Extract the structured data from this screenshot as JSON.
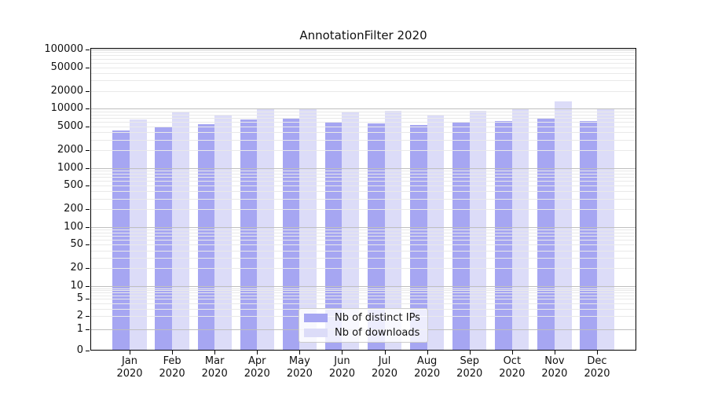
{
  "title": "AnnotationFilter 2020",
  "chart_data": {
    "type": "bar",
    "title": "AnnotationFilter 2020",
    "categories": [
      "Jan 2020",
      "Feb 2020",
      "Mar 2020",
      "Apr 2020",
      "May 2020",
      "Jun 2020",
      "Jul 2020",
      "Aug 2020",
      "Sep 2020",
      "Oct 2020",
      "Nov 2020",
      "Dec 2020"
    ],
    "x_tick_line1": [
      "Jan",
      "Feb",
      "Mar",
      "Apr",
      "May",
      "Jun",
      "Jul",
      "Aug",
      "Sep",
      "Oct",
      "Nov",
      "Dec"
    ],
    "x_tick_line2": "2020",
    "series": [
      {
        "name": "Nb of distinct IPs",
        "color": "#a6a6f2",
        "values": [
          4300,
          4900,
          5400,
          6600,
          6800,
          5900,
          5600,
          5300,
          5900,
          6100,
          7000,
          6100
        ]
      },
      {
        "name": "Nb of downloads",
        "color": "#dcdcf8",
        "values": [
          6600,
          8700,
          8000,
          10000,
          10000,
          8700,
          9300,
          8000,
          9300,
          10100,
          13300,
          9800
        ]
      }
    ],
    "yscale": "symlog",
    "ylim": [
      0,
      100000
    ],
    "yticks": [
      0,
      1,
      2,
      5,
      10,
      20,
      50,
      100,
      200,
      500,
      1000,
      2000,
      5000,
      10000,
      20000,
      50000,
      100000
    ],
    "grid": "major and minor horizontal gridlines drawn over bars",
    "legend_position": "lower center (inside axes)"
  },
  "colors": {
    "bar_distinct_ips": "#a6a6f2",
    "bar_downloads": "#dcdcf8",
    "grid_major": "#bfbfbf",
    "grid_minor": "#e9e9e9",
    "spine": "#000000",
    "legend_border": "#cccccc"
  }
}
